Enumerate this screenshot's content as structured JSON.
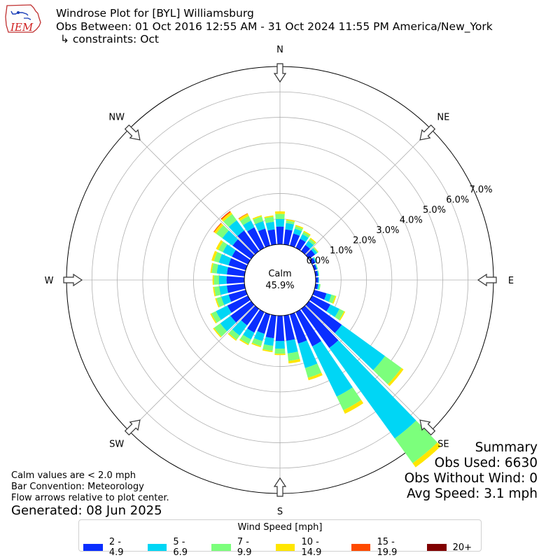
{
  "header": {
    "logo_text": "IEM",
    "title": "Windrose Plot for [BYL] Williamsburg",
    "subtitle": "Obs Between: 01 Oct 2016 12:55 AM - 31 Oct 2024 11:55 PM America/New_York",
    "constraints": "↳ constraints: Oct"
  },
  "chart_data": {
    "type": "windrose",
    "directions": [
      "N",
      "NE",
      "E",
      "SE",
      "S",
      "SW",
      "W",
      "NW"
    ],
    "radial_ticks": [
      "0.0%",
      "1.0%",
      "2.0%",
      "3.0%",
      "4.0%",
      "5.0%",
      "6.0%",
      "7.0%"
    ],
    "radial_max": 7.0,
    "calm_label": "Calm",
    "calm_value": "45.9%",
    "legend_title": "Wind Speed [mph]",
    "speed_bins": [
      {
        "label": "2 - 4.9",
        "color": "#0a2eff"
      },
      {
        "label": "5 - 6.9",
        "color": "#00d6f5"
      },
      {
        "label": "7 - 9.9",
        "color": "#7cff7c"
      },
      {
        "label": "10 - 14.9",
        "color": "#ffe600"
      },
      {
        "label": "15 - 19.9",
        "color": "#ff4a00"
      },
      {
        "label": "20+",
        "color": "#800000"
      }
    ],
    "sector_width_deg": 10,
    "sectors": [
      {
        "dir": 0,
        "values": [
          0.7,
          0.3,
          0.2,
          0.1,
          0,
          0
        ]
      },
      {
        "dir": 10,
        "values": [
          0.6,
          0.25,
          0.1,
          0.05,
          0,
          0
        ]
      },
      {
        "dir": 20,
        "values": [
          0.5,
          0.2,
          0.1,
          0.05,
          0,
          0
        ]
      },
      {
        "dir": 30,
        "values": [
          0.4,
          0.2,
          0.1,
          0.05,
          0,
          0
        ]
      },
      {
        "dir": 40,
        "values": [
          0.3,
          0.2,
          0.1,
          0.05,
          0,
          0
        ]
      },
      {
        "dir": 50,
        "values": [
          0.3,
          0.1,
          0.05,
          0.02,
          0,
          0
        ]
      },
      {
        "dir": 60,
        "values": [
          0.15,
          0.05,
          0.02,
          0.0,
          0,
          0
        ]
      },
      {
        "dir": 70,
        "values": [
          0.1,
          0.03,
          0.02,
          0.0,
          0,
          0
        ]
      },
      {
        "dir": 80,
        "values": [
          0.1,
          0.03,
          0.02,
          0.0,
          0,
          0
        ]
      },
      {
        "dir": 90,
        "values": [
          0.1,
          0.03,
          0.0,
          0.0,
          0,
          0
        ]
      },
      {
        "dir": 100,
        "values": [
          0.1,
          0.05,
          0.05,
          0.0,
          0,
          0
        ]
      },
      {
        "dir": 110,
        "values": [
          0.5,
          0.2,
          0.15,
          0.05,
          0,
          0
        ]
      },
      {
        "dir": 120,
        "values": [
          0.8,
          0.4,
          0.2,
          0.05,
          0,
          0
        ]
      },
      {
        "dir": 130,
        "values": [
          1.6,
          2.1,
          0.8,
          0.1,
          0,
          0
        ]
      },
      {
        "dir": 140,
        "values": [
          1.9,
          4.4,
          1.2,
          0.2,
          0,
          0
        ]
      },
      {
        "dir": 150,
        "values": [
          1.5,
          2.2,
          0.6,
          0.15,
          0,
          0
        ]
      },
      {
        "dir": 160,
        "values": [
          1.2,
          1.0,
          0.4,
          0.1,
          0,
          0
        ]
      },
      {
        "dir": 170,
        "values": [
          1.0,
          0.5,
          0.3,
          0.1,
          0,
          0
        ]
      },
      {
        "dir": 180,
        "values": [
          1.0,
          0.3,
          0.2,
          0.05,
          0,
          0
        ]
      },
      {
        "dir": 190,
        "values": [
          0.9,
          0.3,
          0.2,
          0.05,
          0,
          0
        ]
      },
      {
        "dir": 200,
        "values": [
          0.8,
          0.3,
          0.2,
          0.05,
          0,
          0
        ]
      },
      {
        "dir": 210,
        "values": [
          0.9,
          0.3,
          0.2,
          0.05,
          0,
          0
        ]
      },
      {
        "dir": 220,
        "values": [
          0.8,
          0.5,
          0.2,
          0.05,
          0,
          0
        ]
      },
      {
        "dir": 230,
        "values": [
          1.0,
          0.5,
          0.3,
          0.05,
          0,
          0
        ]
      },
      {
        "dir": 240,
        "values": [
          0.9,
          0.5,
          0.2,
          0.05,
          0,
          0
        ]
      },
      {
        "dir": 250,
        "values": [
          0.7,
          0.3,
          0.2,
          0.05,
          0,
          0
        ]
      },
      {
        "dir": 260,
        "values": [
          0.7,
          0.3,
          0.2,
          0.05,
          0,
          0
        ]
      },
      {
        "dir": 270,
        "values": [
          0.7,
          0.3,
          0.2,
          0.05,
          0,
          0
        ]
      },
      {
        "dir": 280,
        "values": [
          0.7,
          0.4,
          0.2,
          0.05,
          0,
          0
        ]
      },
      {
        "dir": 290,
        "values": [
          0.7,
          0.4,
          0.2,
          0.1,
          0,
          0
        ]
      },
      {
        "dir": 300,
        "values": [
          0.7,
          0.4,
          0.2,
          0.1,
          0,
          0
        ]
      },
      {
        "dir": 310,
        "values": [
          0.9,
          0.5,
          0.3,
          0.1,
          0.03,
          0
        ]
      },
      {
        "dir": 320,
        "values": [
          1.0,
          0.5,
          0.3,
          0.1,
          0.05,
          0
        ]
      },
      {
        "dir": 330,
        "values": [
          0.9,
          0.3,
          0.2,
          0.1,
          0.02,
          0
        ]
      },
      {
        "dir": 340,
        "values": [
          0.7,
          0.3,
          0.2,
          0.05,
          0,
          0
        ]
      },
      {
        "dir": 350,
        "values": [
          0.6,
          0.3,
          0.2,
          0.05,
          0,
          0
        ]
      }
    ]
  },
  "summary": {
    "heading": "Summary",
    "obs_used": "Obs Used: 6630",
    "obs_without_wind": "Obs Without Wind: 0",
    "avg_speed": "Avg Speed: 3.1 mph"
  },
  "notes": {
    "calm": "Calm values are < 2.0 mph",
    "bar_convention": "Bar Convention: Meteorology",
    "flow_arrows": "Flow arrows relative to plot center.",
    "generated": "Generated: 08 Jun 2025"
  }
}
